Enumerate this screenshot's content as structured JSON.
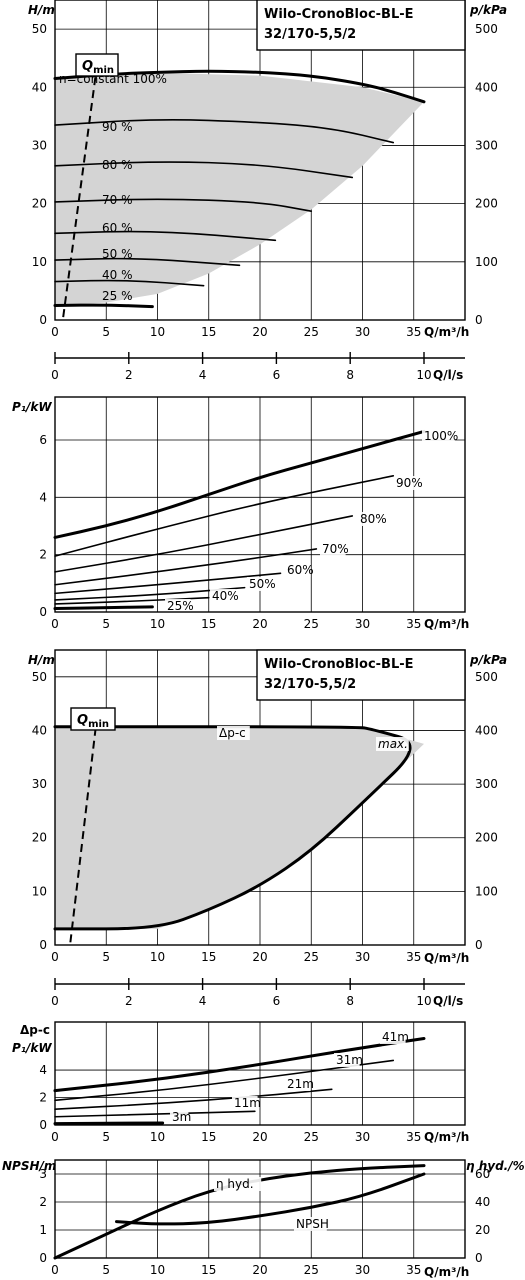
{
  "chart_data": [
    {
      "id": "hq-variable",
      "type": "line",
      "title": [
        "Wilo-CronoBloc-BL-E",
        "32/170-5,5/2"
      ],
      "ylabel": "H/m",
      "ylabel_right": "p/kPa",
      "xlabel": "Q/m³/h",
      "xlabel_secondary": "Q/l/s",
      "xlim": [
        0,
        40
      ],
      "ylim": [
        0,
        55
      ],
      "x_ticks": [
        0,
        5,
        10,
        15,
        20,
        25,
        30,
        35
      ],
      "y_ticks": [
        0,
        10,
        20,
        30,
        40,
        50
      ],
      "y_right_ticks": [
        0,
        100,
        200,
        300,
        400,
        500
      ],
      "x_secondary_ticks": [
        0,
        2,
        4,
        6,
        8,
        10
      ],
      "qmin_label": "Q",
      "qmin_sub": "min",
      "qmin_line": [
        [
          0.8,
          0.5
        ],
        [
          4.0,
          42.5
        ]
      ],
      "shaded_region": [
        [
          0,
          41.5
        ],
        [
          10,
          42.5
        ],
        [
          20,
          42.0
        ],
        [
          30,
          40.0
        ],
        [
          36,
          37.5
        ],
        [
          30,
          26.5
        ],
        [
          25,
          19.0
        ],
        [
          20,
          13.0
        ],
        [
          15,
          8.0
        ],
        [
          10,
          4.5
        ],
        [
          5,
          3.0
        ],
        [
          0,
          2.5
        ]
      ],
      "grid": true,
      "series": [
        {
          "name": "n=constant 100%",
          "bold": true,
          "points": [
            [
              0,
              41.5
            ],
            [
              5,
              42.2
            ],
            [
              10,
              42.6
            ],
            [
              15,
              42.8
            ],
            [
              20,
              42.6
            ],
            [
              25,
              42.0
            ],
            [
              30,
              40.6
            ],
            [
              33,
              39.2
            ],
            [
              36,
              37.5
            ]
          ]
        },
        {
          "name": "90 %",
          "bold": false,
          "points": [
            [
              0,
              33.5
            ],
            [
              10,
              34.6
            ],
            [
              20,
              34.0
            ],
            [
              27,
              33.0
            ],
            [
              33,
              30.5
            ]
          ]
        },
        {
          "name": "80 %",
          "bold": false,
          "points": [
            [
              0,
              26.5
            ],
            [
              10,
              27.3
            ],
            [
              20,
              26.8
            ],
            [
              29,
              24.5
            ]
          ]
        },
        {
          "name": "70 %",
          "bold": false,
          "points": [
            [
              0,
              20.3
            ],
            [
              10,
              20.9
            ],
            [
              20,
              20.3
            ],
            [
              25,
              18.7
            ]
          ]
        },
        {
          "name": "60 %",
          "bold": false,
          "points": [
            [
              0,
              14.9
            ],
            [
              10,
              15.4
            ],
            [
              21.5,
              13.7
            ]
          ]
        },
        {
          "name": "50 %",
          "bold": false,
          "points": [
            [
              0,
              10.3
            ],
            [
              8,
              10.7
            ],
            [
              18,
              9.4
            ]
          ]
        },
        {
          "name": "40 %",
          "bold": false,
          "points": [
            [
              0,
              6.6
            ],
            [
              7,
              6.9
            ],
            [
              14.5,
              5.9
            ]
          ]
        },
        {
          "name": "25 %",
          "bold": true,
          "points": [
            [
              0,
              2.5
            ],
            [
              5,
              2.6
            ],
            [
              9.5,
              2.3
            ]
          ]
        }
      ],
      "curve_labels": [
        "n=constant 100%",
        "90 %",
        "80 %",
        "70 %",
        "60 %",
        "50 %",
        "40 %",
        "25 %"
      ]
    },
    {
      "id": "power-variable",
      "type": "line",
      "ylabel": "P₁/kW",
      "xlabel": "Q/m³/h",
      "xlim": [
        0,
        40
      ],
      "ylim": [
        0,
        7.5
      ],
      "x_ticks": [
        0,
        5,
        10,
        15,
        20,
        25,
        30,
        35
      ],
      "y_ticks": [
        0,
        2,
        4,
        6
      ],
      "grid": true,
      "series": [
        {
          "name": "100%",
          "bold": true,
          "points": [
            [
              0,
              2.6
            ],
            [
              5,
              3.0
            ],
            [
              10,
              3.5
            ],
            [
              15,
              4.1
            ],
            [
              20,
              4.7
            ],
            [
              25,
              5.2
            ],
            [
              30,
              5.7
            ],
            [
              36,
              6.3
            ]
          ]
        },
        {
          "name": "90%",
          "bold": false,
          "points": [
            [
              0,
              1.95
            ],
            [
              10,
              2.9
            ],
            [
              20,
              3.8
            ],
            [
              33,
              4.75
            ]
          ]
        },
        {
          "name": "80%",
          "bold": false,
          "points": [
            [
              0,
              1.4
            ],
            [
              10,
              2.0
            ],
            [
              20,
              2.7
            ],
            [
              29,
              3.35
            ]
          ]
        },
        {
          "name": "70%",
          "bold": false,
          "points": [
            [
              0,
              0.95
            ],
            [
              10,
              1.4
            ],
            [
              20,
              1.9
            ],
            [
              25.5,
              2.2
            ]
          ]
        },
        {
          "name": "60%",
          "bold": false,
          "points": [
            [
              0,
              0.65
            ],
            [
              10,
              0.95
            ],
            [
              22,
              1.35
            ]
          ]
        },
        {
          "name": "50%",
          "bold": false,
          "points": [
            [
              0,
              0.42
            ],
            [
              10,
              0.6
            ],
            [
              18.5,
              0.85
            ]
          ]
        },
        {
          "name": "40%",
          "bold": false,
          "points": [
            [
              0,
              0.28
            ],
            [
              8,
              0.38
            ],
            [
              15,
              0.5
            ]
          ]
        },
        {
          "name": "25%",
          "bold": true,
          "points": [
            [
              0,
              0.12
            ],
            [
              5,
              0.15
            ],
            [
              9.5,
              0.18
            ]
          ]
        }
      ],
      "curve_labels": [
        "100%",
        "90%",
        "80%",
        "70%",
        "60%",
        "50%",
        "40%",
        "25%"
      ]
    },
    {
      "id": "hq-dpc",
      "type": "line",
      "title": [
        "Wilo-CronoBloc-BL-E",
        "32/170-5,5/2"
      ],
      "ylabel": "H/m",
      "ylabel_right": "p/kPa",
      "xlabel": "Q/m³/h",
      "xlabel_secondary": "Q/l/s",
      "xlim": [
        0,
        40
      ],
      "ylim": [
        0,
        55
      ],
      "x_ticks": [
        0,
        5,
        10,
        15,
        20,
        25,
        30,
        35
      ],
      "y_ticks": [
        0,
        10,
        20,
        30,
        40,
        50
      ],
      "y_right_ticks": [
        0,
        100,
        200,
        300,
        400,
        500
      ],
      "x_secondary_ticks": [
        0,
        2,
        4,
        6,
        8,
        10
      ],
      "qmin_label": "Q",
      "qmin_sub": "min",
      "qmin_line": [
        [
          1.5,
          0.5
        ],
        [
          4.0,
          41.0
        ]
      ],
      "shaded_region": [
        [
          0,
          40.7
        ],
        [
          29.5,
          40.7
        ],
        [
          31,
          40.2
        ],
        [
          36,
          37.5
        ],
        [
          30,
          26.5
        ],
        [
          25,
          17.5
        ],
        [
          20,
          11.0
        ],
        [
          15,
          6.5
        ],
        [
          10,
          3.0
        ],
        [
          0,
          3.0
        ]
      ],
      "grid": true,
      "series": [
        {
          "name": "Δp-c",
          "bold": true,
          "points": [
            [
              0,
              40.7
            ],
            [
              29.5,
              40.7
            ],
            [
              31,
              40.2
            ],
            [
              36,
              37.5
            ],
            [
              30,
              26.5
            ],
            [
              25,
              17.5
            ],
            [
              20,
              11.0
            ],
            [
              15,
              6.5
            ],
            [
              10,
              3.0
            ],
            [
              0,
              3.0
            ]
          ]
        }
      ],
      "curve_labels": [
        "Δp-c",
        "max."
      ]
    },
    {
      "id": "power-dpc",
      "type": "line",
      "ylabel_top": "Δp-c",
      "ylabel": "P₁/kW",
      "xlabel": "Q/m³/h",
      "xlim": [
        0,
        40
      ],
      "ylim": [
        0,
        7.5
      ],
      "x_ticks": [
        0,
        5,
        10,
        15,
        20,
        25,
        30,
        35
      ],
      "y_ticks": [
        0,
        2,
        4
      ],
      "grid": true,
      "series": [
        {
          "name": "41m",
          "bold": true,
          "points": [
            [
              0,
              2.5
            ],
            [
              10,
              3.3
            ],
            [
              20,
              4.4
            ],
            [
              28,
              5.4
            ],
            [
              36,
              6.3
            ]
          ]
        },
        {
          "name": "31m",
          "bold": false,
          "points": [
            [
              0,
              1.8
            ],
            [
              10,
              2.5
            ],
            [
              20,
              3.4
            ],
            [
              33,
              4.7
            ]
          ]
        },
        {
          "name": "21m",
          "bold": false,
          "points": [
            [
              0,
              1.15
            ],
            [
              10,
              1.55
            ],
            [
              20,
              2.1
            ],
            [
              27,
              2.6
            ]
          ]
        },
        {
          "name": "11m",
          "bold": false,
          "points": [
            [
              0,
              0.6
            ],
            [
              10,
              0.8
            ],
            [
              19.5,
              1.0
            ]
          ]
        },
        {
          "name": "3m",
          "bold": true,
          "points": [
            [
              0,
              0.1
            ],
            [
              10.5,
              0.15
            ]
          ]
        }
      ],
      "curve_labels": [
        "41m",
        "31m",
        "21m",
        "11m",
        "3m"
      ]
    },
    {
      "id": "npsh-eta",
      "type": "line",
      "ylabel": "NPSH/m",
      "ylabel_right": "η hyd./%",
      "xlabel": "Q/m³/h",
      "xlim": [
        0,
        40
      ],
      "ylim": [
        0,
        3.5
      ],
      "x_ticks": [
        0,
        5,
        10,
        15,
        20,
        25,
        30,
        35
      ],
      "y_ticks": [
        0,
        1,
        2,
        3
      ],
      "y_right_ticks": [
        0,
        20,
        40,
        60
      ],
      "grid": true,
      "series": [
        {
          "name": "η hyd.",
          "bold": true,
          "axis": "right",
          "points": [
            [
              0,
              0
            ],
            [
              5,
              17
            ],
            [
              10,
              34
            ],
            [
              15,
              48
            ],
            [
              20,
              56
            ],
            [
              25,
              61
            ],
            [
              30,
              64
            ],
            [
              36,
              66
            ]
          ]
        },
        {
          "name": "NPSH",
          "bold": true,
          "axis": "left",
          "points": [
            [
              6,
              1.3
            ],
            [
              10,
              1.2
            ],
            [
              15,
              1.25
            ],
            [
              20,
              1.5
            ],
            [
              25,
              1.8
            ],
            [
              30,
              2.2
            ],
            [
              36,
              3.0
            ]
          ]
        }
      ],
      "curve_labels": [
        "η hyd.",
        "NPSH"
      ]
    }
  ]
}
